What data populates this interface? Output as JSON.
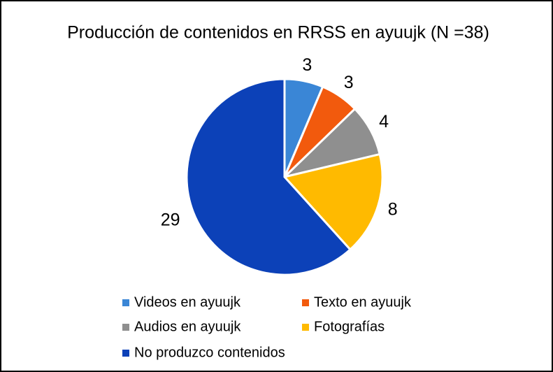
{
  "chart_data": {
    "type": "pie",
    "title": "Producción de contenidos en RRSS en ayuujk (N =38)",
    "categories": [
      "Videos en ayuujk",
      "Texto en ayuujk",
      "Audios en ayuujk",
      "Fotografías",
      "No produzco contenidos"
    ],
    "values": [
      3,
      3,
      4,
      8,
      29
    ],
    "colors": [
      "#3a86d6",
      "#f25a0d",
      "#8f8f8f",
      "#ffba00",
      "#0c41b8"
    ]
  }
}
